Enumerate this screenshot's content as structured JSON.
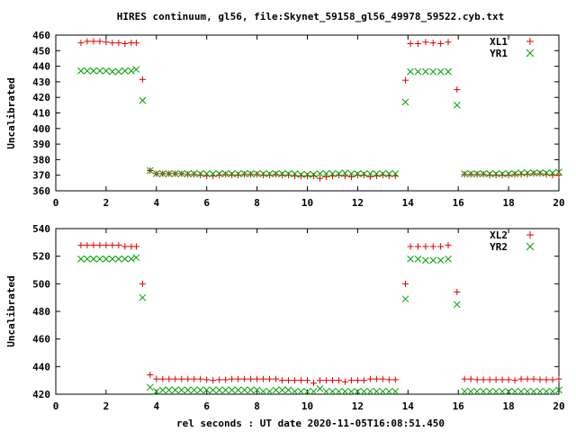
{
  "chart_data": {
    "type": "scatter",
    "title": "HIRES continuum, gl56, file:Skynet_59158_gl56_49978_59522.cyb.txt",
    "xlabel": "rel seconds : UT date 2020-11-05T16:08:51.450",
    "panels": [
      {
        "ylabel": "Uncalibrated",
        "xlim": [
          0,
          20
        ],
        "ylim": [
          360,
          460
        ],
        "xticks": [
          0,
          2,
          4,
          6,
          8,
          10,
          12,
          14,
          16,
          18,
          20
        ],
        "yticks": [
          360,
          370,
          380,
          390,
          400,
          410,
          420,
          430,
          440,
          450,
          460
        ],
        "legend_position": "top-right",
        "series": [
          {
            "name": "XL1",
            "marker": "plus",
            "color": "#e00000",
            "x": [
              1.0,
              1.25,
              1.5,
              1.75,
              2.0,
              2.25,
              2.5,
              2.75,
              3.0,
              3.2,
              3.45,
              3.75,
              4.0,
              4.25,
              4.5,
              4.75,
              5.0,
              5.25,
              5.5,
              5.75,
              6.0,
              6.25,
              6.5,
              6.75,
              7.0,
              7.25,
              7.5,
              7.75,
              8.0,
              8.25,
              8.5,
              8.75,
              9.0,
              9.25,
              9.5,
              9.75,
              10.0,
              10.25,
              10.5,
              10.75,
              11.0,
              11.25,
              11.5,
              11.75,
              12.0,
              12.25,
              12.5,
              12.75,
              13.0,
              13.25,
              13.5,
              13.9,
              14.1,
              14.4,
              14.7,
              15.0,
              15.3,
              15.6,
              15.95,
              16.25,
              16.5,
              16.75,
              17.0,
              17.25,
              17.5,
              17.75,
              18.0,
              18.25,
              18.5,
              18.75,
              19.0,
              19.25,
              19.5,
              19.75,
              20.0
            ],
            "y": [
              455,
              456,
              456,
              456,
              455.5,
              455,
              455,
              454.5,
              455,
              455,
              431.5,
              373,
              371,
              371,
              371,
              371,
              371,
              370.5,
              370.5,
              370,
              369.5,
              369.5,
              370,
              370.5,
              370,
              370,
              370.5,
              370.5,
              370.5,
              370,
              370,
              370.5,
              370,
              370,
              369.5,
              369.5,
              369.5,
              369.5,
              368,
              369,
              369.5,
              370,
              369.5,
              369,
              370,
              370,
              369,
              369.5,
              370,
              369.5,
              369.5,
              431,
              454.5,
              454.5,
              455.5,
              455,
              454.5,
              455.5,
              425,
              370.5,
              370.5,
              370.5,
              370.5,
              370,
              370,
              370,
              370,
              370.5,
              370.5,
              370.5,
              371,
              371,
              370.5,
              370,
              370
            ]
          },
          {
            "name": "YR1",
            "marker": "cross",
            "color": "#00a000",
            "x": [
              1.0,
              1.25,
              1.5,
              1.75,
              2.0,
              2.25,
              2.5,
              2.75,
              3.0,
              3.2,
              3.45,
              3.75,
              4.0,
              4.25,
              4.5,
              4.75,
              5.0,
              5.25,
              5.5,
              5.75,
              6.0,
              6.25,
              6.5,
              6.75,
              7.0,
              7.25,
              7.5,
              7.75,
              8.0,
              8.25,
              8.5,
              8.75,
              9.0,
              9.25,
              9.5,
              9.75,
              10.0,
              10.25,
              10.5,
              10.75,
              11.0,
              11.25,
              11.5,
              11.75,
              12.0,
              12.25,
              12.5,
              12.75,
              13.0,
              13.25,
              13.5,
              13.9,
              14.1,
              14.4,
              14.7,
              15.0,
              15.3,
              15.6,
              15.95,
              16.25,
              16.5,
              16.75,
              17.0,
              17.25,
              17.5,
              17.75,
              18.0,
              18.25,
              18.5,
              18.75,
              19.0,
              19.25,
              19.5,
              19.75,
              20.0
            ],
            "y": [
              437,
              437,
              437,
              437,
              437,
              436.5,
              436.5,
              437,
              437,
              438,
              418,
              373,
              371,
              371,
              371,
              371,
              371,
              371,
              371,
              371,
              371,
              371,
              371,
              371,
              371,
              371,
              371,
              371,
              371,
              371,
              371,
              371,
              371,
              371,
              371,
              370.5,
              370.5,
              370.5,
              371,
              371,
              371,
              371,
              371.5,
              371,
              371,
              371,
              371,
              371,
              371,
              371,
              371,
              417,
              436.5,
              436.5,
              436.5,
              436.5,
              436.5,
              436.5,
              415,
              371,
              371,
              371,
              371,
              371,
              371,
              371,
              371,
              371,
              371.5,
              371.5,
              371.5,
              371.5,
              371.5,
              371.5,
              372
            ]
          }
        ]
      },
      {
        "ylabel": "Uncalibrated",
        "xlim": [
          0,
          20
        ],
        "ylim": [
          420,
          540
        ],
        "xticks": [
          0,
          2,
          4,
          6,
          8,
          10,
          12,
          14,
          16,
          18,
          20
        ],
        "yticks": [
          420,
          440,
          460,
          480,
          500,
          520,
          540
        ],
        "legend_position": "top-right",
        "series": [
          {
            "name": "XL2",
            "marker": "plus",
            "color": "#e00000",
            "x": [
              1.0,
              1.25,
              1.5,
              1.75,
              2.0,
              2.25,
              2.5,
              2.75,
              3.0,
              3.2,
              3.45,
              3.75,
              4.0,
              4.25,
              4.5,
              4.75,
              5.0,
              5.25,
              5.5,
              5.75,
              6.0,
              6.25,
              6.5,
              6.75,
              7.0,
              7.25,
              7.5,
              7.75,
              8.0,
              8.25,
              8.5,
              8.75,
              9.0,
              9.25,
              9.5,
              9.75,
              10.0,
              10.25,
              10.5,
              10.75,
              11.0,
              11.25,
              11.5,
              11.75,
              12.0,
              12.25,
              12.5,
              12.75,
              13.0,
              13.25,
              13.5,
              13.9,
              14.1,
              14.4,
              14.7,
              15.0,
              15.3,
              15.6,
              15.95,
              16.25,
              16.5,
              16.75,
              17.0,
              17.25,
              17.5,
              17.75,
              18.0,
              18.25,
              18.5,
              18.75,
              19.0,
              19.25,
              19.5,
              19.75,
              20.0
            ],
            "y": [
              528,
              528,
              528,
              528,
              528,
              528,
              528,
              527,
              527,
              527,
              500,
              434,
              431,
              431,
              431,
              431,
              431,
              431,
              431,
              431,
              430.5,
              430,
              430.5,
              430.5,
              431,
              431,
              431,
              431,
              431,
              431,
              431,
              431,
              430,
              430,
              430,
              430,
              430,
              428,
              430,
              430,
              430,
              430,
              429,
              430,
              430,
              430,
              431,
              431,
              431,
              430.5,
              430.5,
              500,
              527,
              527,
              527,
              527,
              527,
              528,
              494,
              431,
              431,
              430.5,
              430.5,
              430.5,
              430.5,
              430.5,
              430.5,
              430,
              431,
              431,
              431,
              430.5,
              430.5,
              430.5,
              431
            ]
          },
          {
            "name": "YR2",
            "marker": "cross",
            "color": "#00a000",
            "x": [
              1.0,
              1.25,
              1.5,
              1.75,
              2.0,
              2.25,
              2.5,
              2.75,
              3.0,
              3.2,
              3.45,
              3.75,
              4.0,
              4.25,
              4.5,
              4.75,
              5.0,
              5.25,
              5.5,
              5.75,
              6.0,
              6.25,
              6.5,
              6.75,
              7.0,
              7.25,
              7.5,
              7.75,
              8.0,
              8.25,
              8.5,
              8.75,
              9.0,
              9.25,
              9.5,
              9.75,
              10.0,
              10.25,
              10.5,
              10.75,
              11.0,
              11.25,
              11.5,
              11.75,
              12.0,
              12.25,
              12.5,
              12.75,
              13.0,
              13.25,
              13.5,
              13.9,
              14.1,
              14.4,
              14.7,
              15.0,
              15.3,
              15.6,
              15.95,
              16.25,
              16.5,
              16.75,
              17.0,
              17.25,
              17.5,
              17.75,
              18.0,
              18.25,
              18.5,
              18.75,
              19.0,
              19.25,
              19.5,
              19.75,
              20.0
            ],
            "y": [
              518,
              518,
              518,
              518,
              518,
              518,
              518,
              518,
              518,
              519,
              490,
              425,
              422,
              423,
              423,
              423,
              423,
              423,
              423,
              423,
              423,
              423,
              423,
              423,
              423,
              423,
              423,
              423,
              423,
              422,
              422,
              423,
              423,
              423,
              422,
              422,
              422,
              422,
              424,
              422,
              422,
              422,
              422,
              422,
              422,
              422,
              422,
              422,
              422,
              422,
              422,
              489,
              518,
              518,
              517,
              517,
              517,
              518,
              485,
              422,
              422,
              422,
              422,
              422,
              422,
              422,
              422,
              422,
              422,
              422,
              422,
              422,
              422,
              422,
              423
            ]
          }
        ]
      }
    ]
  }
}
